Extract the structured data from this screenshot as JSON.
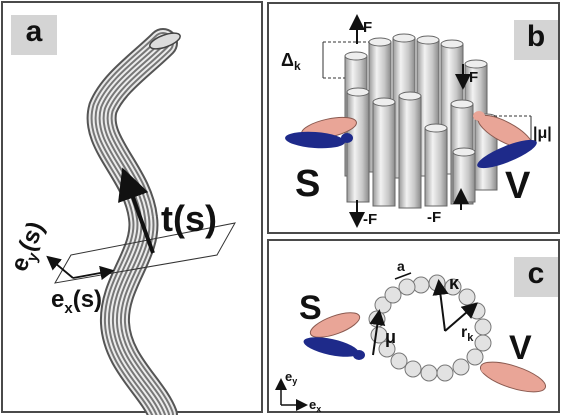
{
  "panel_a": {
    "letter": "a",
    "tangent_label": "t(s)",
    "ey_label": "e",
    "ey_sub": "y",
    "ey_arg": "(s)",
    "ex_label": "e",
    "ex_sub": "x",
    "ex_arg": "(s)"
  },
  "panel_b": {
    "letter": "b",
    "force_top": "F",
    "force_right": "F",
    "force_bottom_left": "-F",
    "force_bottom_right": "-F",
    "delta_label": "Δ",
    "delta_sub": "k",
    "mu_label": "|μ|",
    "s_label": "S",
    "v_label": "V"
  },
  "panel_c": {
    "letter": "c",
    "a_label": "a",
    "kappa_label": "κ",
    "mu_label": "μ",
    "r_label": "r",
    "r_sub": "k",
    "s_label": "S",
    "v_label": "V",
    "axis_y": "e",
    "axis_y_sub": "y",
    "axis_x": "e",
    "axis_x_sub": "x"
  },
  "colors": {
    "salmon": "#e9a597",
    "navy": "#1e2a8a",
    "rod_gray": "#bdbdbd"
  }
}
